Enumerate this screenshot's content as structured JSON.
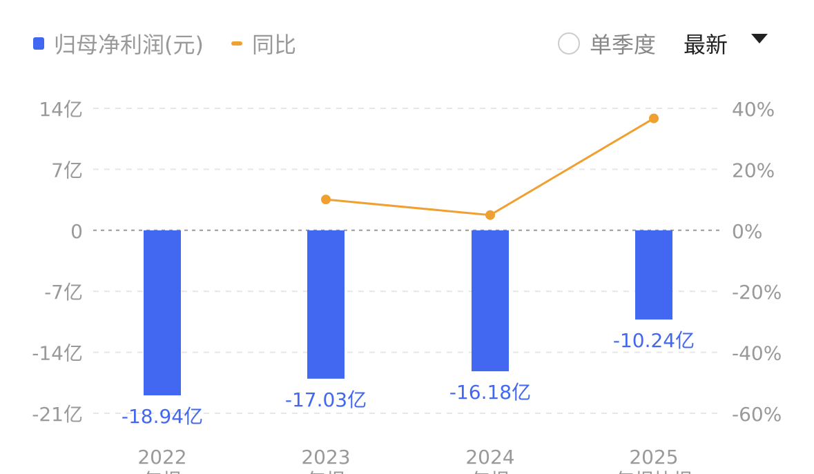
{
  "legend": {
    "bar_series": "归母净利润(元)",
    "line_series": "同比"
  },
  "controls": {
    "quarter_toggle": "单季度",
    "period_select": "最新"
  },
  "colors": {
    "bar": "#4267f0",
    "line": "#f0a030",
    "axis_text": "#999999",
    "data_label": "#4267f0"
  },
  "icons": {
    "radio": "radio-unchecked-icon",
    "dropdown": "triangle-down-icon"
  },
  "chart_data": {
    "type": "bar+line",
    "categories": [
      "2022",
      "2023",
      "2024",
      "2025"
    ],
    "category_sublabels": [
      "年报",
      "年报",
      "年报",
      "年报快报"
    ],
    "series": [
      {
        "name": "归母净利润(元)",
        "type": "bar",
        "axis": "left",
        "values": [
          -18.94,
          -17.03,
          -16.18,
          -10.24
        ],
        "labels": [
          "-18.94亿",
          "-17.03亿",
          "-16.18亿",
          "-10.24亿"
        ]
      },
      {
        "name": "同比",
        "type": "line",
        "axis": "right",
        "values": [
          null,
          10.1,
          5.0,
          36.7
        ]
      }
    ],
    "left_axis": {
      "ticks": [
        14,
        7,
        0,
        -7,
        -14,
        -21
      ],
      "tick_labels": [
        "14亿",
        "7亿",
        "0",
        "-7亿",
        "-14亿",
        "-21亿"
      ],
      "ylim": [
        -21,
        14
      ]
    },
    "right_axis": {
      "ticks": [
        40,
        20,
        0,
        -20,
        -40,
        -60
      ],
      "tick_labels": [
        "40%",
        "20%",
        "0%",
        "-20%",
        "-40%",
        "-60%"
      ],
      "ylim": [
        -60,
        40
      ]
    },
    "grid": true
  }
}
